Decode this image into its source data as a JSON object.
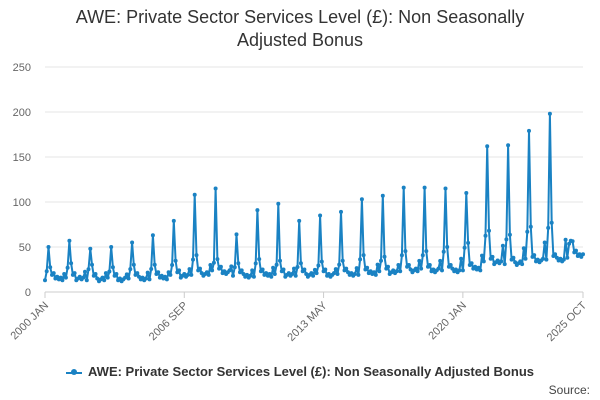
{
  "chart_data": {
    "type": "line",
    "title": "AWE: Private Sector Services Level (£): Non Seasonally Adjusted Bonus",
    "title_lines": [
      "AWE: Private Sector Services Level (£): Non Seasonally",
      "Adjusted Bonus"
    ],
    "ylim": [
      0,
      250
    ],
    "yticks": [
      "0",
      "50",
      "100",
      "150",
      "200",
      "250"
    ],
    "ytick_values": [
      0,
      50,
      100,
      150,
      200,
      250
    ],
    "xlim": [
      2000.0,
      2025.75
    ],
    "xticks": [
      {
        "label": "2000 JAN",
        "value": 2000.0
      },
      {
        "label": "2006 SEP",
        "value": 2006.667
      },
      {
        "label": "2013 MAY",
        "value": 2013.333
      },
      {
        "label": "2020 JAN",
        "value": 2020.0
      },
      {
        "label": "2025 OCT",
        "value": 2025.75
      }
    ],
    "series": [
      {
        "name": "AWE: Private Sector Services Level (£): Non Seasonally Adjusted Bonus",
        "color": "#1a82c3",
        "start_year": 2000,
        "start_month": 1,
        "annual_peaks": [
          50,
          57,
          48,
          50,
          55,
          63,
          79,
          108,
          115,
          64,
          91,
          98,
          79,
          85,
          89,
          103,
          107,
          116,
          116,
          115,
          110,
          162,
          163,
          179,
          198,
          57
        ],
        "annual_secondary": [
          25,
          30,
          28,
          25,
          28,
          28,
          33,
          40,
          35,
          30,
          35,
          33,
          30,
          32,
          33,
          40,
          38,
          45,
          45,
          50,
          55,
          70,
          65,
          75,
          80,
          57
        ],
        "annual_base": [
          15,
          15,
          14,
          14,
          15,
          16,
          18,
          20,
          22,
          18,
          19,
          19,
          19,
          19,
          20,
          21,
          22,
          24,
          24,
          24,
          26,
          33,
          32,
          35,
          36,
          40
        ]
      }
    ],
    "legend": "AWE: Private Sector Services Level (£): Non Seasonally Adjusted Bonus"
  },
  "source_label": "Source:"
}
